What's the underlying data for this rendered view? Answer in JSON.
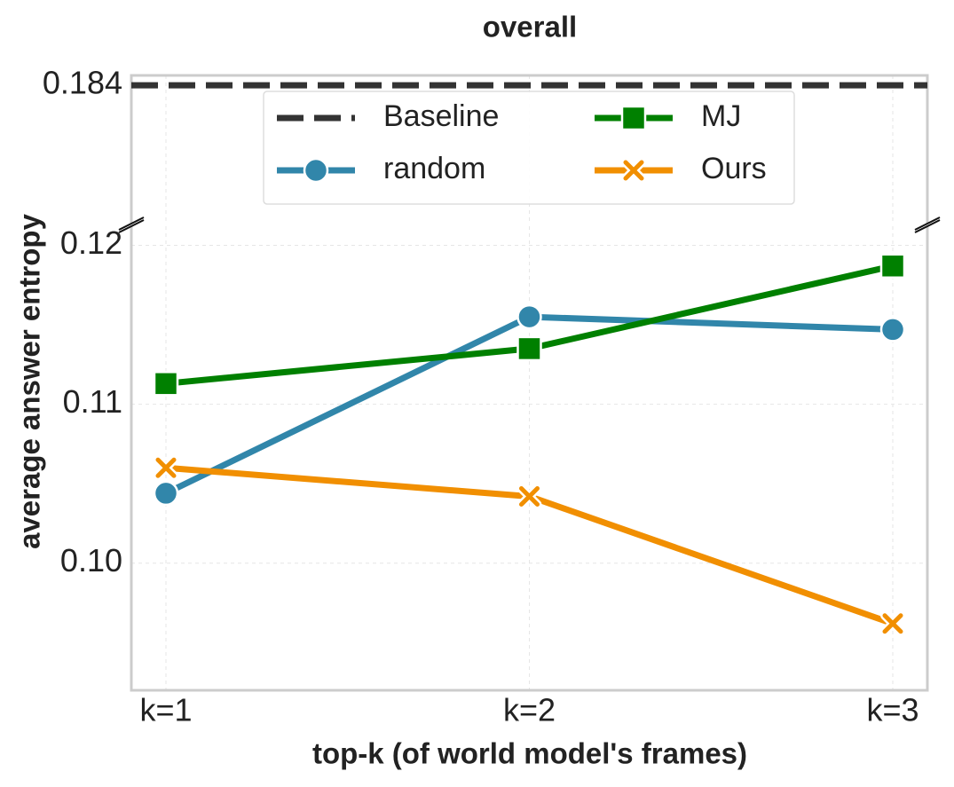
{
  "chart_data": {
    "type": "line",
    "title": "overall",
    "xlabel": "top-k (of world model's frames)",
    "ylabel": "average answer entropy",
    "categories": [
      "k=1",
      "k=2",
      "k=3"
    ],
    "ylim": [
      0.092,
      0.1212
    ],
    "yticks": [
      {
        "value": 0.1,
        "label": "0.10"
      },
      0.11,
      0.12
    ],
    "ylim_upper": [
      0.17,
      0.185
    ],
    "yticks_upper": [
      0.184
    ],
    "grid": true,
    "legend": "upper center",
    "reference_line": {
      "name": "Baseline",
      "value": 0.184,
      "color": "#333333"
    },
    "series": [
      {
        "name": "random",
        "color": "#3186aa",
        "marker": "circle",
        "values": [
          0.1044,
          0.1155,
          0.1147
        ]
      },
      {
        "name": "MJ",
        "color": "#008000",
        "marker": "square",
        "values": [
          0.1113,
          0.1135,
          0.1187
        ]
      },
      {
        "name": "Ours",
        "color": "#f18f01",
        "marker": "x",
        "values": [
          0.106,
          0.1042,
          0.0962
        ]
      }
    ]
  }
}
